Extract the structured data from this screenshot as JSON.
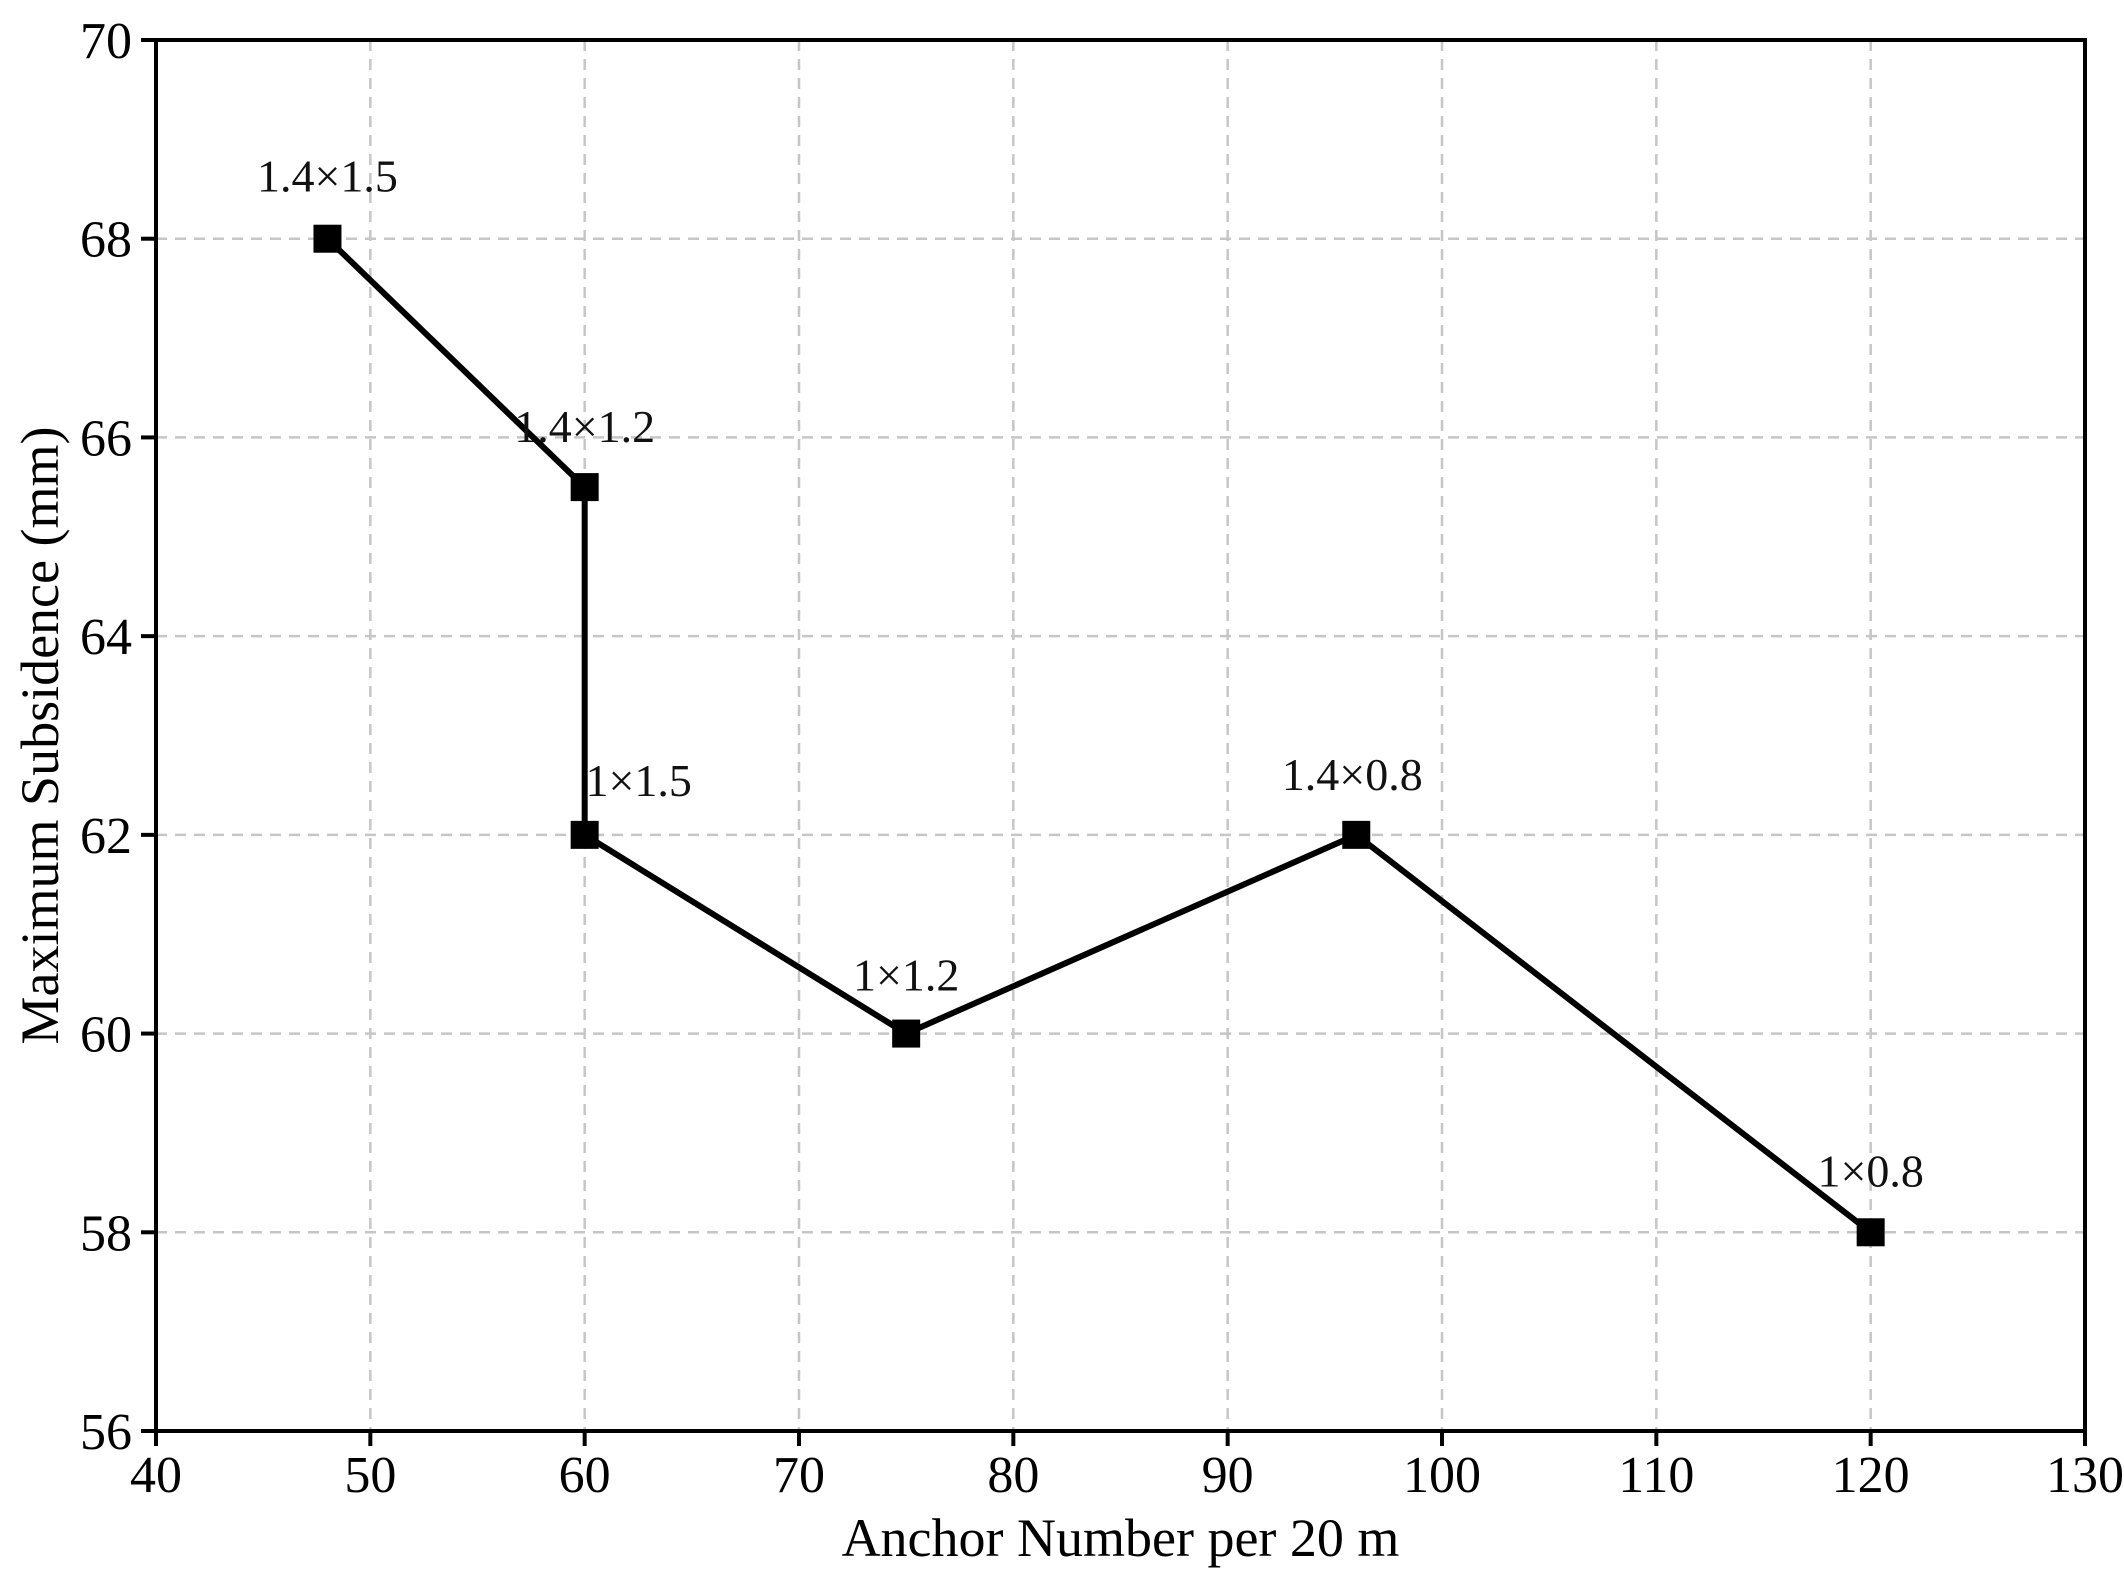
{
  "chart_data": {
    "type": "line",
    "title": "",
    "xlabel": "Anchor Number per 20 m",
    "ylabel": "Maximum Subsidence (mm)",
    "xlim": [
      40,
      130
    ],
    "ylim": [
      56,
      70
    ],
    "xticks": [
      40,
      50,
      60,
      70,
      80,
      90,
      100,
      110,
      120,
      130
    ],
    "yticks": [
      56,
      58,
      60,
      62,
      64,
      66,
      68,
      70
    ],
    "grid": "dashed",
    "legend": "none",
    "series": [
      {
        "name": "maximum-subsidence",
        "color": "#000000",
        "marker": "square",
        "points": [
          {
            "x": 48,
            "y": 68,
            "label": "1.4×1.5",
            "label_dx": 0,
            "label_dy": -47
          },
          {
            "x": 60,
            "y": 65.5,
            "label": "1.4×1.2",
            "label_dx": 0,
            "label_dy": -45
          },
          {
            "x": 60,
            "y": 62,
            "label": "1×1.5",
            "label_dx": 54,
            "label_dy": -39
          },
          {
            "x": 75,
            "y": 60,
            "label": "1×1.2",
            "label_dx": 0,
            "label_dy": -43
          },
          {
            "x": 96,
            "y": 62,
            "label": "1.4×0.8",
            "label_dx": -4,
            "label_dy": -45
          },
          {
            "x": 120,
            "y": 58,
            "label": "1×0.8",
            "label_dx": 0,
            "label_dy": -46
          }
        ]
      }
    ],
    "colors": {
      "axis": "#000000",
      "grid": "#c6c6c6",
      "text": "#000000",
      "annotation": "#111111",
      "background": "#ffffff"
    }
  }
}
